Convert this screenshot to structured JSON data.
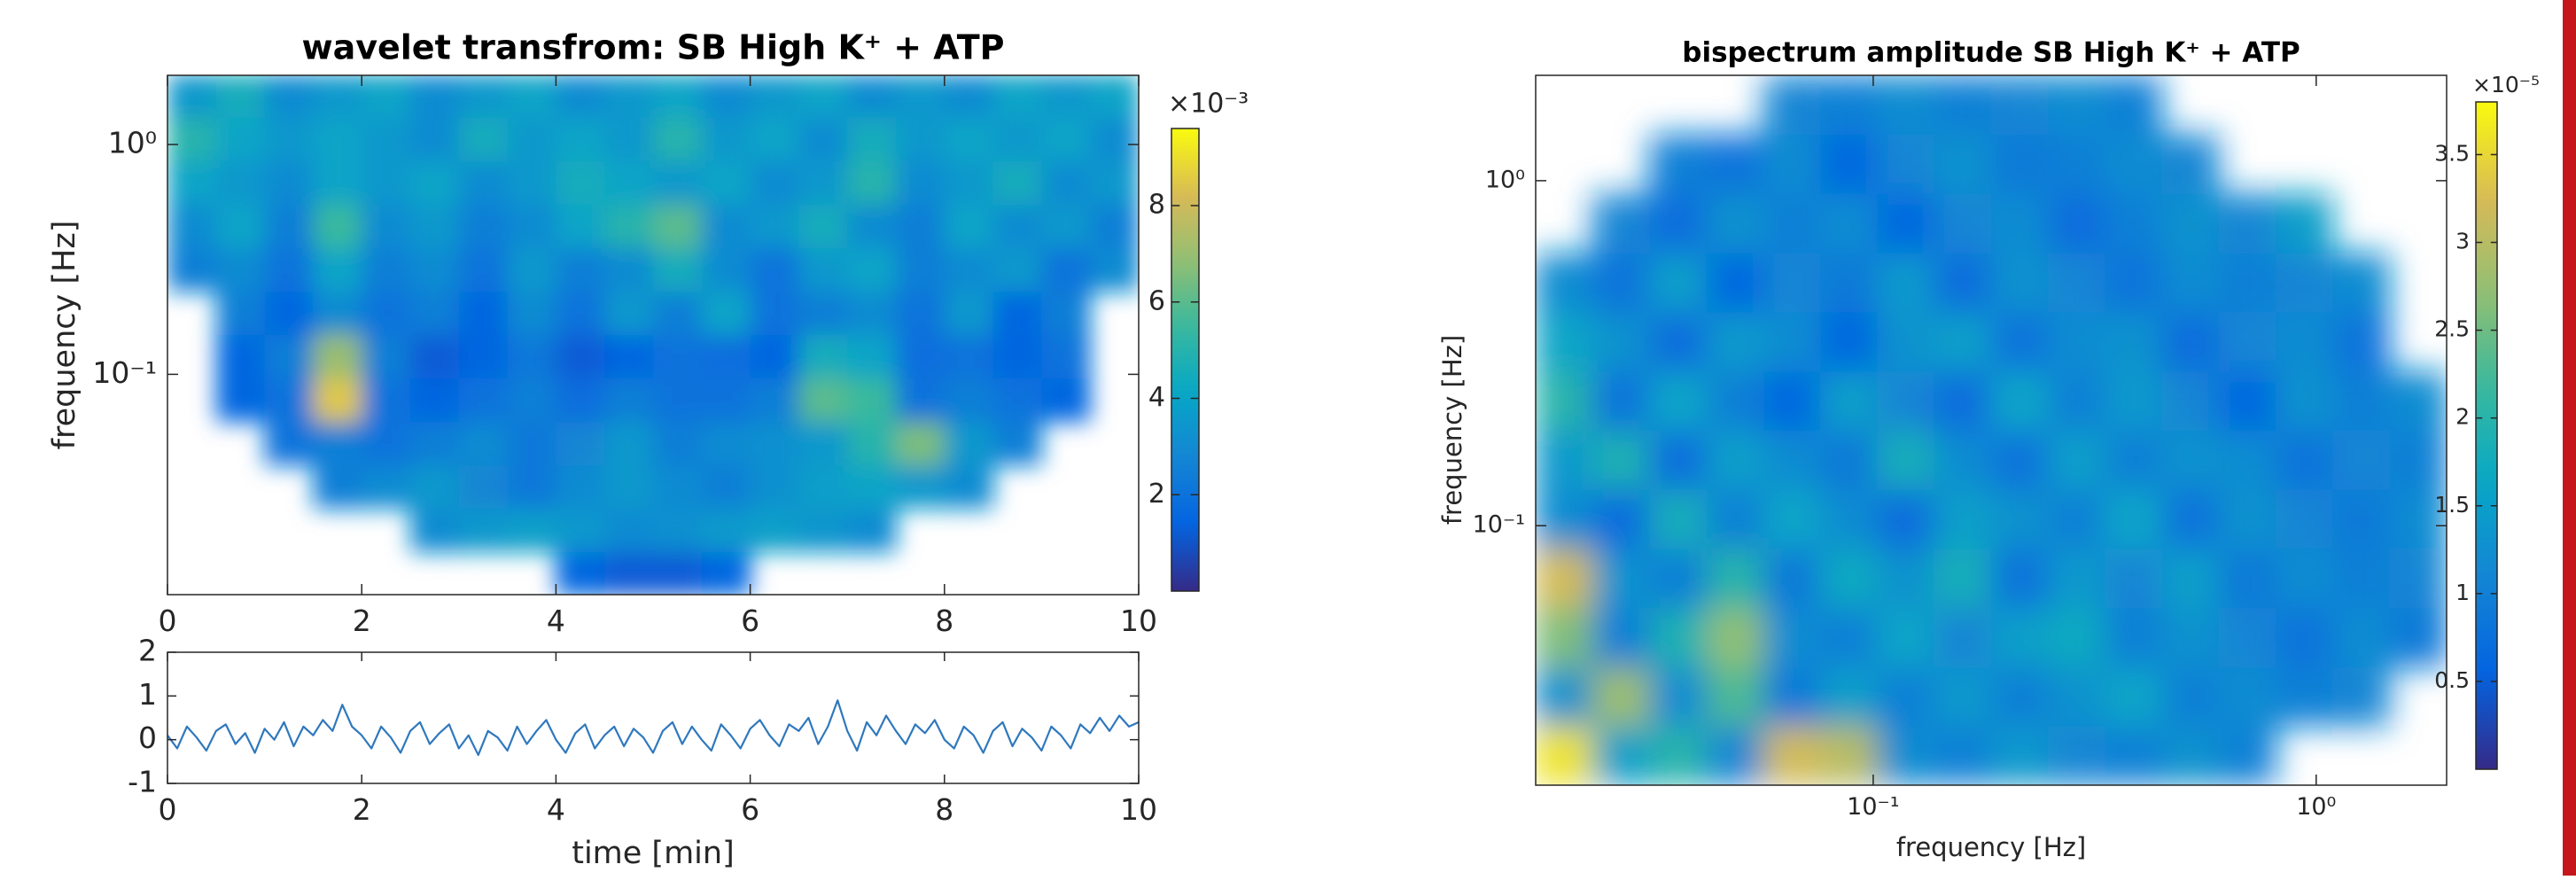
{
  "chart_data": [
    {
      "type": "heatmap",
      "title": "wavelet transfrom: SB High K⁺ + ATP",
      "ylabel": "frequency [Hz]",
      "x": [
        0.25,
        0.75,
        1.25,
        1.75,
        2.25,
        2.75,
        3.25,
        3.75,
        4.25,
        4.75,
        5.25,
        5.75,
        6.25,
        6.75,
        7.25,
        7.75,
        8.25,
        8.75,
        9.25,
        9.75
      ],
      "y": [
        0.0136,
        0.021,
        0.0325,
        0.05,
        0.0776,
        0.12,
        0.185,
        0.286,
        0.443,
        0.684,
        1.06,
        1.63
      ],
      "z": [
        [
          null,
          null,
          null,
          null,
          null,
          null,
          null,
          null,
          1.5,
          1.2,
          1.2,
          1.5,
          null,
          null,
          null,
          null,
          null,
          null,
          null,
          null
        ],
        [
          null,
          null,
          null,
          null,
          null,
          3,
          3.5,
          3.8,
          3.5,
          3,
          3.2,
          3.6,
          3.8,
          3.4,
          3,
          null,
          null,
          null,
          null,
          null
        ],
        [
          null,
          null,
          null,
          2.5,
          3,
          3.5,
          2.8,
          2.2,
          3,
          3.5,
          3,
          2.5,
          3.2,
          3.8,
          4,
          3.5,
          3,
          null,
          null,
          null
        ],
        [
          null,
          null,
          2,
          2.5,
          2,
          2.5,
          3,
          2.2,
          2.8,
          3.5,
          2.5,
          3,
          3.2,
          3.5,
          5,
          6.5,
          3.5,
          2.5,
          null,
          null
        ],
        [
          null,
          1.5,
          2,
          8.5,
          2,
          1.5,
          2,
          2.5,
          1.8,
          2.5,
          2,
          2,
          2.5,
          6,
          5.5,
          2,
          2.5,
          2,
          1.5,
          null
        ],
        [
          null,
          1.5,
          2.5,
          7,
          2.5,
          1.2,
          1.5,
          2.2,
          1.2,
          1.5,
          2,
          1.8,
          1.5,
          4.5,
          4,
          1.8,
          2,
          1.5,
          2,
          null
        ],
        [
          null,
          2.5,
          1.5,
          3,
          2,
          2.5,
          1.5,
          3,
          2,
          3.5,
          2.5,
          4,
          2,
          2.5,
          3,
          2,
          3.5,
          1.5,
          2.5,
          null
        ],
        [
          2.5,
          3,
          2,
          4,
          2.5,
          3,
          2,
          3.5,
          2.5,
          3,
          4.5,
          3,
          2,
          3.5,
          4,
          2.5,
          3,
          3.5,
          2,
          3
        ],
        [
          3,
          4,
          2.5,
          5.5,
          3,
          3.5,
          2.5,
          3,
          4,
          5,
          6,
          3,
          3.5,
          4.5,
          3,
          2.5,
          4,
          3,
          3.5,
          2.5
        ],
        [
          4,
          3.5,
          3,
          4,
          3.5,
          4,
          3,
          3.5,
          4.5,
          4,
          3.5,
          4,
          3,
          3.5,
          5,
          3,
          3.5,
          4.5,
          3,
          3.5
        ],
        [
          5,
          4,
          3.5,
          4,
          3.5,
          3,
          4.5,
          3.5,
          4,
          3.5,
          5,
          3.5,
          4,
          3,
          4.5,
          3.5,
          4,
          3.5,
          4,
          3
        ],
        [
          3.5,
          4.5,
          3,
          3.5,
          4,
          3,
          3.5,
          4,
          3,
          3.5,
          4,
          3,
          3.5,
          4,
          3,
          3.5,
          3,
          4,
          3.5,
          4
        ]
      ],
      "xlim": [
        0,
        10
      ],
      "xticks": [
        0,
        2,
        4,
        6,
        8,
        10
      ],
      "ylim": [
        0.011,
        2.0
      ],
      "yscale": "log",
      "yticks": [
        {
          "value": 0.1,
          "label": "10⁻¹"
        },
        {
          "value": 1,
          "label": "10⁰"
        }
      ],
      "colormap": "parula",
      "clim": [
        0,
        9.6
      ],
      "colorbar_ticks": [
        2,
        4,
        6,
        8
      ],
      "colorbar_label": "×10⁻³"
    },
    {
      "type": "line",
      "xlabel": "time [min]",
      "color": "#2f78bd",
      "x": [
        0,
        0.1,
        0.2,
        0.3,
        0.4,
        0.5,
        0.6,
        0.7,
        0.8,
        0.9,
        1,
        1.1,
        1.2,
        1.3,
        1.4,
        1.5,
        1.6,
        1.7,
        1.8,
        1.9,
        2,
        2.1,
        2.2,
        2.3,
        2.4,
        2.5,
        2.6,
        2.7,
        2.8,
        2.9,
        3,
        3.1,
        3.2,
        3.3,
        3.4,
        3.5,
        3.6,
        3.7,
        3.8,
        3.9,
        4,
        4.1,
        4.2,
        4.3,
        4.4,
        4.5,
        4.6,
        4.7,
        4.8,
        4.9,
        5,
        5.1,
        5.2,
        5.3,
        5.4,
        5.5,
        5.6,
        5.7,
        5.8,
        5.9,
        6,
        6.1,
        6.2,
        6.3,
        6.4,
        6.5,
        6.6,
        6.7,
        6.8,
        6.9,
        7,
        7.1,
        7.2,
        7.3,
        7.4,
        7.5,
        7.6,
        7.7,
        7.8,
        7.9,
        8,
        8.1,
        8.2,
        8.3,
        8.4,
        8.5,
        8.6,
        8.7,
        8.8,
        8.9,
        9,
        9.1,
        9.2,
        9.3,
        9.4,
        9.5,
        9.6,
        9.7,
        9.8,
        9.9,
        10
      ],
      "values": [
        0.1,
        -0.2,
        0.3,
        0.05,
        -0.25,
        0.2,
        0.35,
        -0.1,
        0.15,
        -0.3,
        0.25,
        0.0,
        0.4,
        -0.15,
        0.3,
        0.1,
        0.45,
        0.2,
        0.8,
        0.3,
        0.1,
        -0.2,
        0.3,
        0.05,
        -0.3,
        0.2,
        0.4,
        -0.1,
        0.15,
        0.35,
        -0.2,
        0.1,
        -0.35,
        0.2,
        0.05,
        -0.25,
        0.3,
        -0.1,
        0.2,
        0.45,
        0.0,
        -0.3,
        0.15,
        0.35,
        -0.2,
        0.1,
        0.3,
        -0.15,
        0.25,
        0.05,
        -0.3,
        0.2,
        0.4,
        -0.1,
        0.3,
        0.0,
        -0.25,
        0.35,
        0.1,
        -0.2,
        0.25,
        0.45,
        0.1,
        -0.15,
        0.35,
        0.2,
        0.5,
        -0.1,
        0.3,
        0.9,
        0.2,
        -0.25,
        0.4,
        0.1,
        0.55,
        0.2,
        -0.1,
        0.35,
        0.15,
        0.45,
        0.0,
        -0.2,
        0.3,
        0.1,
        -0.3,
        0.2,
        0.4,
        -0.15,
        0.25,
        0.05,
        -0.25,
        0.3,
        0.1,
        -0.2,
        0.35,
        0.15,
        0.5,
        0.2,
        0.55,
        0.3,
        0.4
      ],
      "xlim": [
        0,
        10
      ],
      "xticks": [
        0,
        2,
        4,
        6,
        8,
        10
      ],
      "ylim": [
        -1,
        2
      ],
      "yticks": [
        -1,
        0,
        1,
        2
      ]
    },
    {
      "type": "heatmap",
      "title": "bispectrum amplitude SB High K⁺ + ATP",
      "xlabel": "frequency [Hz]",
      "ylabel": "frequency [Hz]",
      "x": [
        0.02,
        0.027,
        0.0362,
        0.0488,
        0.0655,
        0.0881,
        0.118,
        0.159,
        0.214,
        0.288,
        0.386,
        0.52,
        0.698,
        0.94,
        1.26,
        1.7
      ],
      "y": [
        0.0216,
        0.032,
        0.0475,
        0.0705,
        0.105,
        0.155,
        0.23,
        0.342,
        0.507,
        0.752,
        1.12,
        1.66
      ],
      "z": [
        [
          3.6,
          1.5,
          2.0,
          1.1,
          3.2,
          3.0,
          1.2,
          1.0,
          1.4,
          1.1,
          1.0,
          1.3,
          1.0,
          null,
          null,
          null
        ],
        [
          1.3,
          2.8,
          1.2,
          2.3,
          0.9,
          1.5,
          1.0,
          1.4,
          1.0,
          1.3,
          1.6,
          1.0,
          1.2,
          1.0,
          1.1,
          null
        ],
        [
          2.6,
          1.0,
          1.9,
          2.7,
          1.2,
          1.0,
          1.6,
          1.1,
          1.5,
          1.7,
          1.0,
          1.3,
          1.1,
          0.8,
          1.2,
          0.9
        ],
        [
          3.2,
          1.3,
          1.0,
          2.0,
          0.9,
          1.7,
          1.3,
          1.8,
          0.8,
          1.4,
          1.1,
          1.5,
          0.9,
          1.2,
          1.0,
          1.1
        ],
        [
          1.2,
          0.7,
          1.8,
          1.0,
          1.6,
          1.2,
          0.7,
          1.5,
          1.3,
          1.0,
          1.6,
          0.8,
          1.3,
          1.1,
          0.9,
          1.2
        ],
        [
          1.4,
          1.9,
          0.7,
          1.5,
          1.2,
          0.9,
          1.8,
          1.2,
          0.8,
          1.5,
          1.0,
          1.3,
          1.2,
          0.8,
          1.1,
          1.0
        ],
        [
          2.0,
          0.8,
          1.6,
          1.0,
          0.6,
          1.5,
          1.1,
          0.7,
          1.6,
          1.0,
          1.4,
          1.1,
          0.6,
          1.3,
          1.0,
          1.2
        ],
        [
          1.6,
          1.3,
          0.7,
          1.4,
          1.2,
          0.6,
          1.3,
          1.5,
          0.8,
          1.2,
          1.3,
          0.7,
          1.1,
          1.2,
          0.8,
          null
        ],
        [
          1.2,
          0.8,
          1.5,
          0.6,
          1.1,
          0.9,
          1.4,
          0.7,
          1.3,
          1.1,
          0.8,
          1.2,
          1.0,
          1.1,
          1.2,
          null
        ],
        [
          null,
          1.1,
          0.7,
          1.3,
          1.0,
          1.2,
          0.6,
          1.1,
          1.2,
          0.7,
          1.0,
          1.3,
          1.1,
          1.5,
          null,
          null
        ],
        [
          null,
          null,
          1.0,
          0.8,
          1.2,
          0.6,
          1.1,
          1.3,
          0.9,
          1.0,
          1.2,
          1.1,
          null,
          null,
          null,
          null
        ],
        [
          null,
          null,
          null,
          null,
          1.1,
          1.0,
          1.2,
          1.0,
          1.1,
          1.2,
          1.0,
          null,
          null,
          null,
          null,
          null
        ]
      ],
      "xlim": [
        0.0173,
        1.97
      ],
      "xscale": "log",
      "xticks": [
        {
          "value": 0.1,
          "label": "10⁻¹"
        },
        {
          "value": 1,
          "label": "10⁰"
        }
      ],
      "ylim": [
        0.0177,
        2.02
      ],
      "yscale": "log",
      "yticks": [
        {
          "value": 0.1,
          "label": "10⁻¹"
        },
        {
          "value": 1,
          "label": "10⁰"
        }
      ],
      "colormap": "parula",
      "clim": [
        0,
        3.8
      ],
      "colorbar_ticks": [
        0.5,
        1,
        1.5,
        2,
        2.5,
        3,
        3.5
      ],
      "colorbar_label": "×10⁻⁵"
    }
  ]
}
